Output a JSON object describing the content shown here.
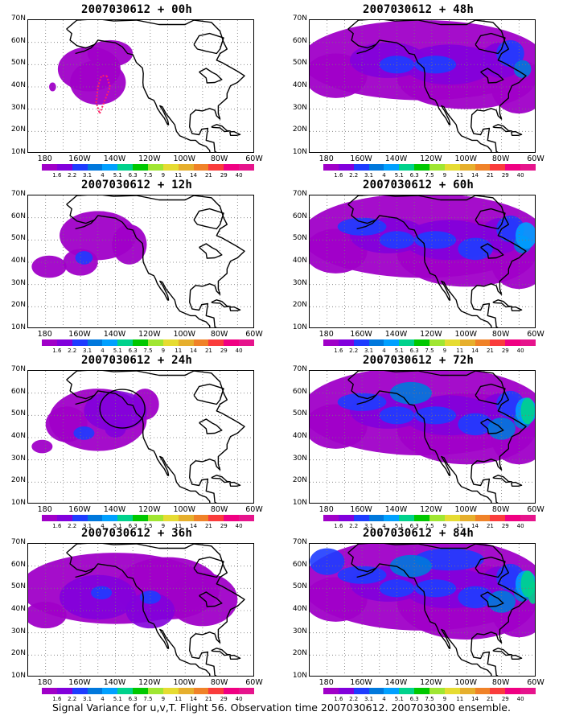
{
  "caption": "Signal Variance for u,v,T. Flight 56. Observation time 2007030612. 2007030300 ensemble.",
  "panels": [
    {
      "title": "2007030612 + 00h",
      "intensity": 0
    },
    {
      "title": "2007030612 + 12h",
      "intensity": 1
    },
    {
      "title": "2007030612 + 24h",
      "intensity": 2
    },
    {
      "title": "2007030612 + 36h",
      "intensity": 3
    },
    {
      "title": "2007030612 + 48h",
      "intensity": 4
    },
    {
      "title": "2007030612 + 60h",
      "intensity": 5
    },
    {
      "title": "2007030612 + 72h",
      "intensity": 6
    },
    {
      "title": "2007030612 + 84h",
      "intensity": 7
    }
  ],
  "lat_labels": [
    "70N",
    "60N",
    "50N",
    "40N",
    "30N",
    "20N",
    "10N"
  ],
  "lon_labels": [
    "180",
    "160W",
    "140W",
    "120W",
    "100W",
    "80W",
    "60W"
  ],
  "colorbar": {
    "labels": [
      "1.6",
      "2.2",
      "3.1",
      "4",
      "5.1",
      "6.3",
      "7.5",
      "9",
      "11",
      "14",
      "21",
      "29",
      "40"
    ],
    "colors": [
      "#a000c8",
      "#8200dc",
      "#1e3cff",
      "#0078dc",
      "#00a0ff",
      "#00d28c",
      "#00c800",
      "#a0e632",
      "#e6dc32",
      "#e6af2d",
      "#f08228",
      "#fa3c3c",
      "#f00082",
      "#e6148c"
    ]
  }
}
